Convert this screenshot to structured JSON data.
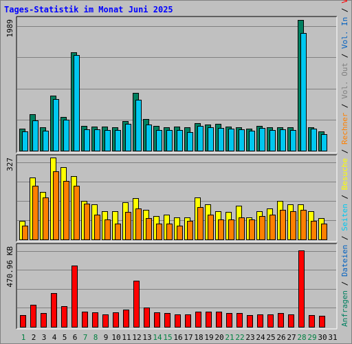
{
  "title": "Tages-Statistik im Monat Juni 2025",
  "colors": {
    "background": "#c0c0c0",
    "title": "#0000ff",
    "hits": "#008060",
    "files": "#00c8f0",
    "pages": "#00c8f0",
    "visits": "#ffff00",
    "sites": "#ff8000",
    "kbytes": "#ff0000",
    "weekend_label": "#008040",
    "weekday_label": "#000000"
  },
  "right_legend": {
    "top": [
      {
        "text": "Anfragen",
        "color": "#008060"
      },
      {
        "text": " / ",
        "color": "#000000"
      },
      {
        "text": "Dateien",
        "color": "#0060c0"
      },
      {
        "text": " / ",
        "color": "#000000"
      },
      {
        "text": "Seiten",
        "color": "#00c8f0"
      },
      {
        "text": " / ",
        "color": "#000000"
      },
      {
        "text": "Besuche",
        "color": "#ffff00"
      },
      {
        "text": " / ",
        "color": "#000000"
      },
      {
        "text": "Rechner",
        "color": "#ff8000"
      },
      {
        "text": " / ",
        "color": "#000000"
      },
      {
        "text": "Vol. Out",
        "color": "#808080"
      },
      {
        "text": " / ",
        "color": "#000000"
      },
      {
        "text": "Vol. In",
        "color": "#0060c0"
      },
      {
        "text": " / ",
        "color": "#000000"
      },
      {
        "text": "Volumen",
        "color": "#ff0000"
      }
    ]
  },
  "chart_data": [
    {
      "type": "bar",
      "panel": "Anfragen / Dateien",
      "ytick": "1989",
      "ymax": 1989,
      "categories": [
        "1",
        "2",
        "3",
        "4",
        "5",
        "6",
        "7",
        "8",
        "9",
        "10",
        "11",
        "12",
        "13",
        "14",
        "15",
        "16",
        "17",
        "18",
        "19",
        "20",
        "21",
        "22",
        "23",
        "24",
        "25",
        "26",
        "27",
        "28",
        "29",
        "30",
        "31"
      ],
      "series": [
        {
          "name": "Anfragen",
          "values": [
            330,
            550,
            360,
            840,
            510,
            1500,
            380,
            370,
            370,
            360,
            450,
            880,
            480,
            380,
            360,
            370,
            360,
            420,
            400,
            410,
            370,
            360,
            330,
            380,
            360,
            360,
            360,
            1990,
            360,
            290,
            0
          ]
        },
        {
          "name": "Dateien",
          "values": [
            290,
            460,
            300,
            790,
            470,
            1460,
            320,
            320,
            310,
            310,
            410,
            770,
            400,
            310,
            310,
            310,
            280,
            380,
            360,
            350,
            330,
            320,
            300,
            350,
            310,
            320,
            310,
            1790,
            330,
            250,
            0
          ]
        }
      ]
    },
    {
      "type": "bar",
      "panel": "Besuche / Rechner",
      "ytick": "327",
      "ymax": 327,
      "categories": [
        "1",
        "2",
        "3",
        "4",
        "5",
        "6",
        "7",
        "8",
        "9",
        "10",
        "11",
        "12",
        "13",
        "14",
        "15",
        "16",
        "17",
        "18",
        "19",
        "20",
        "21",
        "22",
        "23",
        "24",
        "25",
        "26",
        "27",
        "28",
        "29",
        "30",
        "31"
      ],
      "series": [
        {
          "name": "Besuche",
          "values": [
            75,
            250,
            190,
            330,
            290,
            255,
            155,
            140,
            115,
            115,
            150,
            165,
            120,
            95,
            100,
            90,
            90,
            170,
            140,
            115,
            110,
            135,
            90,
            115,
            125,
            155,
            140,
            140,
            115,
            85,
            0
          ]
        },
        {
          "name": "Rechner",
          "values": [
            55,
            215,
            170,
            275,
            235,
            215,
            145,
            100,
            80,
            65,
            110,
            125,
            85,
            65,
            65,
            55,
            75,
            130,
            100,
            80,
            80,
            90,
            80,
            95,
            100,
            120,
            115,
            120,
            75,
            65,
            0
          ]
        }
      ]
    },
    {
      "type": "bar",
      "panel": "Volumen",
      "ytick": "470.96 KB",
      "ymax": 470.96,
      "unit": "KB",
      "categories": [
        "1",
        "2",
        "3",
        "4",
        "5",
        "6",
        "7",
        "8",
        "9",
        "10",
        "11",
        "12",
        "13",
        "14",
        "15",
        "16",
        "17",
        "18",
        "19",
        "20",
        "21",
        "22",
        "23",
        "24",
        "25",
        "26",
        "27",
        "28",
        "29",
        "30",
        "31"
      ],
      "series": [
        {
          "name": "Volumen",
          "values": [
            70,
            130,
            80,
            200,
            120,
            360,
            90,
            85,
            75,
            85,
            100,
            270,
            115,
            85,
            80,
            75,
            75,
            90,
            90,
            90,
            80,
            80,
            70,
            75,
            75,
            80,
            75,
            450,
            70,
            65,
            0
          ]
        }
      ]
    }
  ],
  "weekend_days": [
    "1",
    "7",
    "8",
    "14",
    "15",
    "21",
    "22",
    "28",
    "29"
  ]
}
